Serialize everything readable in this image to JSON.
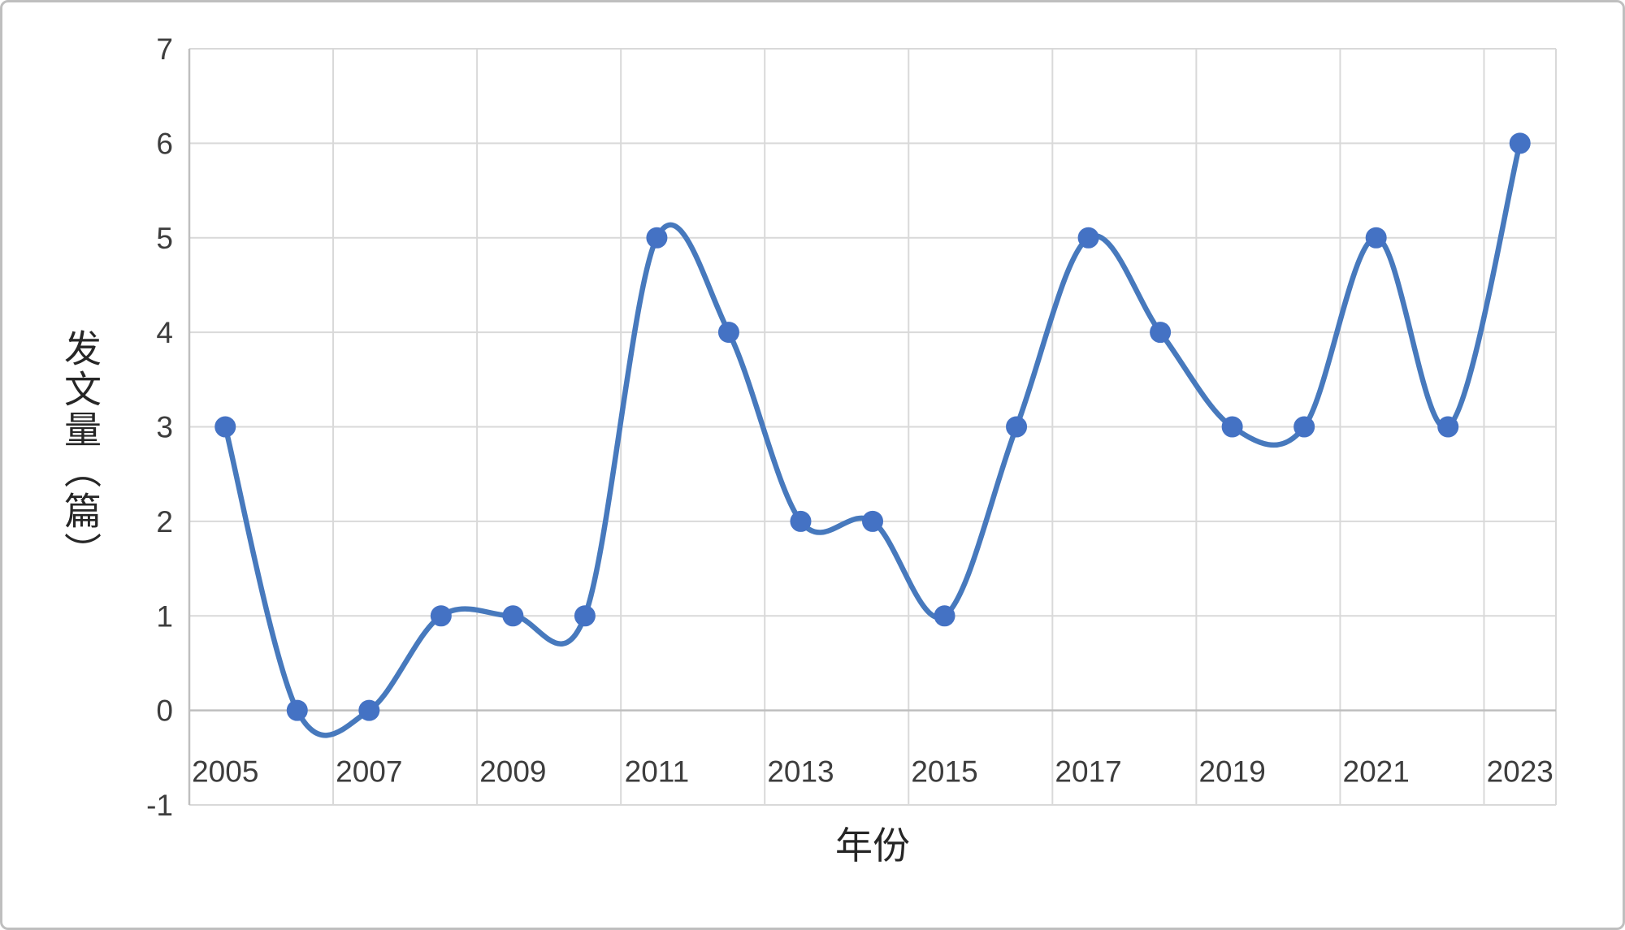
{
  "chart_data": {
    "type": "line",
    "smooth": true,
    "title": "",
    "xlabel": "年份",
    "ylabel": "发文量（篇）",
    "x": [
      2005,
      2006,
      2007,
      2008,
      2009,
      2010,
      2011,
      2012,
      2013,
      2014,
      2015,
      2016,
      2017,
      2018,
      2019,
      2020,
      2021,
      2022,
      2023
    ],
    "values": [
      3,
      0,
      0,
      1,
      1,
      1,
      5,
      4,
      2,
      2,
      1,
      3,
      5,
      4,
      3,
      3,
      5,
      3,
      6
    ],
    "ylim": [
      -1,
      7
    ],
    "yticks": [
      -1,
      0,
      1,
      2,
      3,
      4,
      5,
      6,
      7
    ],
    "xtick_labels": [
      "2005",
      "2007",
      "2009",
      "2011",
      "2013",
      "2015",
      "2017",
      "2019",
      "2021",
      "2023"
    ],
    "xtick_every": 2,
    "grid": true,
    "legend": "none",
    "marker": "circle",
    "colors": {
      "line": "#4779bd",
      "marker": "#4472c4",
      "grid": "#d9d9d9",
      "axis": "#bfbfbf",
      "text": "#3d3d3d"
    }
  }
}
